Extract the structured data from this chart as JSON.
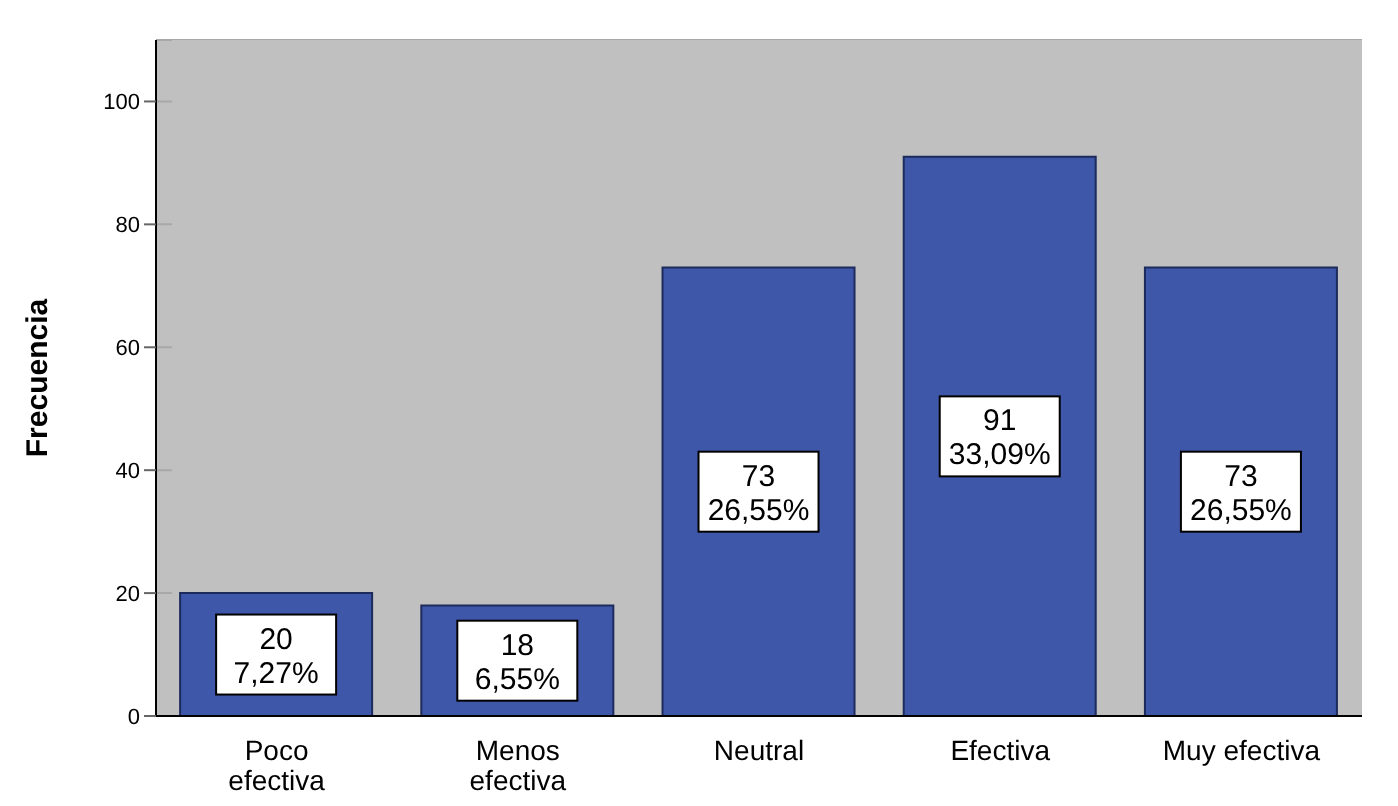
{
  "chart_data": {
    "type": "bar",
    "ylabel": "Frecuencia",
    "categories": [
      "Poco efectiva",
      "Menos efectiva",
      "Neutral",
      "Efectiva",
      "Muy efectiva"
    ],
    "values": [
      20,
      18,
      73,
      91,
      73
    ],
    "value_labels": [
      "20\n7,27%",
      "18\n6,55%",
      "73\n26,55%",
      "91\n33,09%",
      "73\n26,55%"
    ],
    "color": "#3f57a8",
    "ylim": [
      0,
      110
    ],
    "yticks": [
      0,
      20,
      40,
      60,
      80,
      100
    ],
    "grid": "y"
  }
}
